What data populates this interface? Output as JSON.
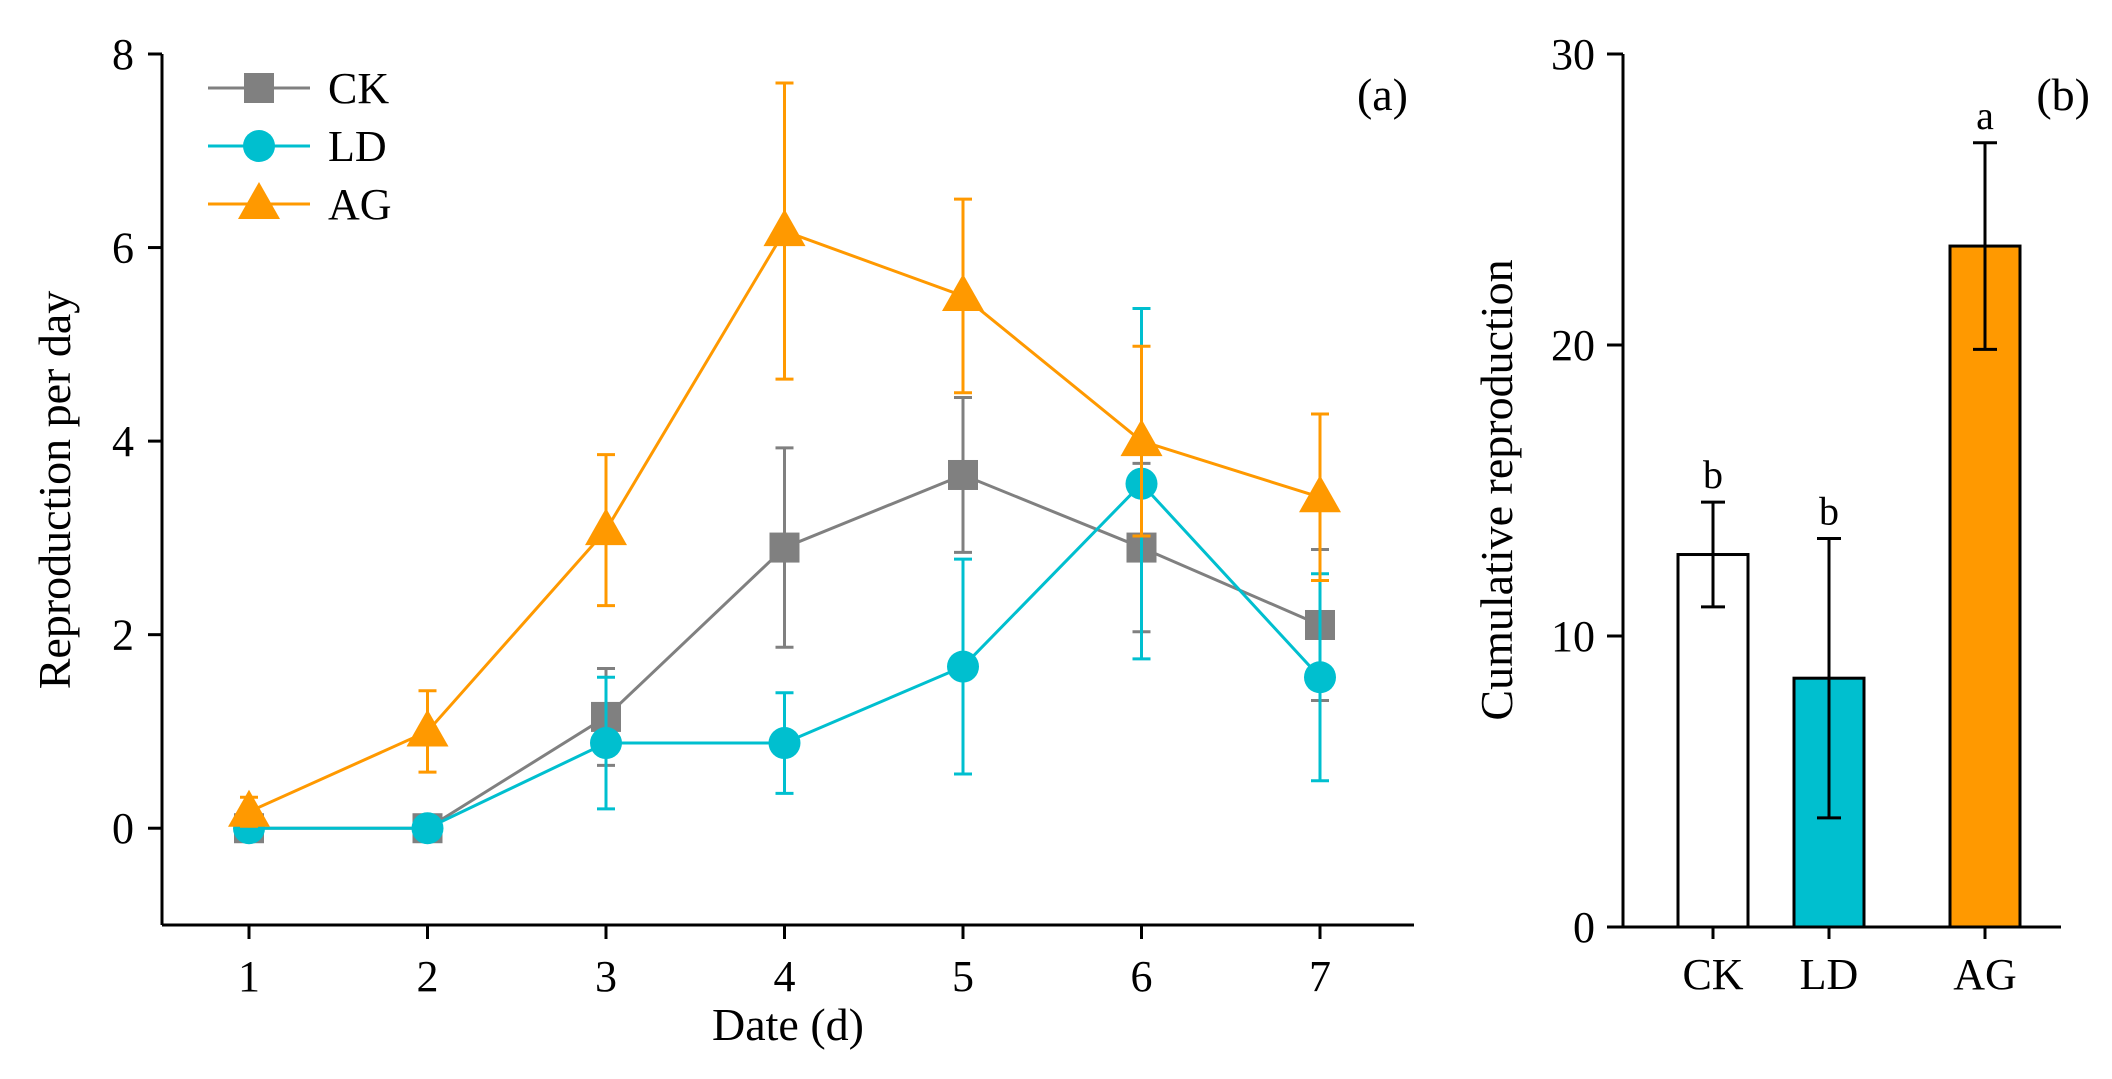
{
  "chart_data": [
    {
      "type": "line",
      "panel_label": "(a)",
      "xlabel": "Date (d)",
      "ylabel": "Reproduction per day",
      "x": [
        1,
        2,
        3,
        4,
        5,
        6,
        7
      ],
      "xlim": [
        0.5,
        7.5
      ],
      "ylim": [
        -1,
        8
      ],
      "yticks": [
        0,
        2,
        4,
        6,
        8
      ],
      "legend_position": "top-left",
      "series": [
        {
          "name": "CK",
          "color": "#808080",
          "marker": "square",
          "values": [
            0,
            0,
            1.15,
            2.9,
            3.65,
            2.9,
            2.1
          ],
          "errors": [
            0,
            0,
            0.5,
            1.03,
            0.8,
            0.87,
            0.78
          ]
        },
        {
          "name": "LD",
          "color": "#00BFCF",
          "marker": "circle",
          "values": [
            0,
            0,
            0.88,
            0.88,
            1.67,
            3.56,
            1.56
          ],
          "errors": [
            0,
            0,
            0.68,
            0.52,
            1.11,
            1.81,
            1.07
          ]
        },
        {
          "name": "AG",
          "color": "#FF9900",
          "marker": "triangle",
          "values": [
            0.17,
            1.0,
            3.08,
            6.17,
            5.5,
            4.0,
            3.42
          ],
          "errors": [
            0.15,
            0.42,
            0.78,
            1.53,
            1.0,
            0.98,
            0.86
          ]
        }
      ]
    },
    {
      "type": "bar",
      "panel_label": "(b)",
      "xlabel": "",
      "ylabel": "Cumulative reproduction",
      "categories": [
        "CK",
        "LD",
        "AG"
      ],
      "values": [
        12.8,
        8.55,
        23.4
      ],
      "errors": [
        1.8,
        4.8,
        3.55
      ],
      "significance": [
        "b",
        "b",
        "a"
      ],
      "colors": [
        "#FFFFFF",
        "#00BFCF",
        "#FF9900"
      ],
      "ylim": [
        0,
        30
      ],
      "yticks": [
        0,
        10,
        20,
        30
      ]
    }
  ]
}
